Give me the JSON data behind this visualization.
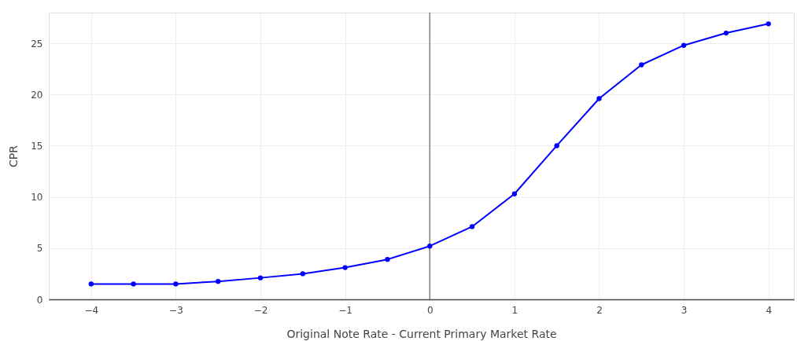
{
  "chart_data": {
    "type": "line",
    "xlabel": "Original Note Rate - Current Primary Market Rate",
    "ylabel": "CPR",
    "x": [
      -4,
      -3.5,
      -3,
      -2.5,
      -2,
      -1.5,
      -1,
      -0.5,
      0,
      0.5,
      1,
      1.5,
      2,
      2.5,
      3,
      3.5,
      4
    ],
    "series": [
      {
        "color": "#0000ff",
        "values": [
          1.5,
          1.5,
          1.5,
          1.75,
          2.1,
          2.5,
          3.1,
          3.9,
          5.2,
          7.1,
          10.3,
          15.0,
          19.6,
          22.9,
          24.8,
          26.0,
          26.9
        ]
      }
    ],
    "xlim": [
      -4.5,
      4.3
    ],
    "ylim": [
      0,
      28
    ],
    "xticks": [
      -4,
      -3,
      -2,
      -1,
      0,
      1,
      2,
      3,
      4
    ],
    "yticks": [
      0,
      5,
      10,
      15,
      20,
      25
    ],
    "ref_lines": [
      {
        "axis": "x",
        "value": 0,
        "color": "#808080"
      }
    ],
    "grid": true,
    "marker": "circle",
    "line_style": "solid"
  }
}
